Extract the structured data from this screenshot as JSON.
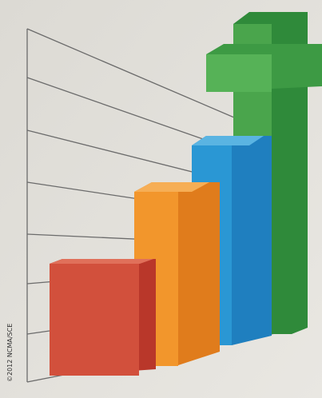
{
  "credit": "©2012 NCMA/SCE"
}
